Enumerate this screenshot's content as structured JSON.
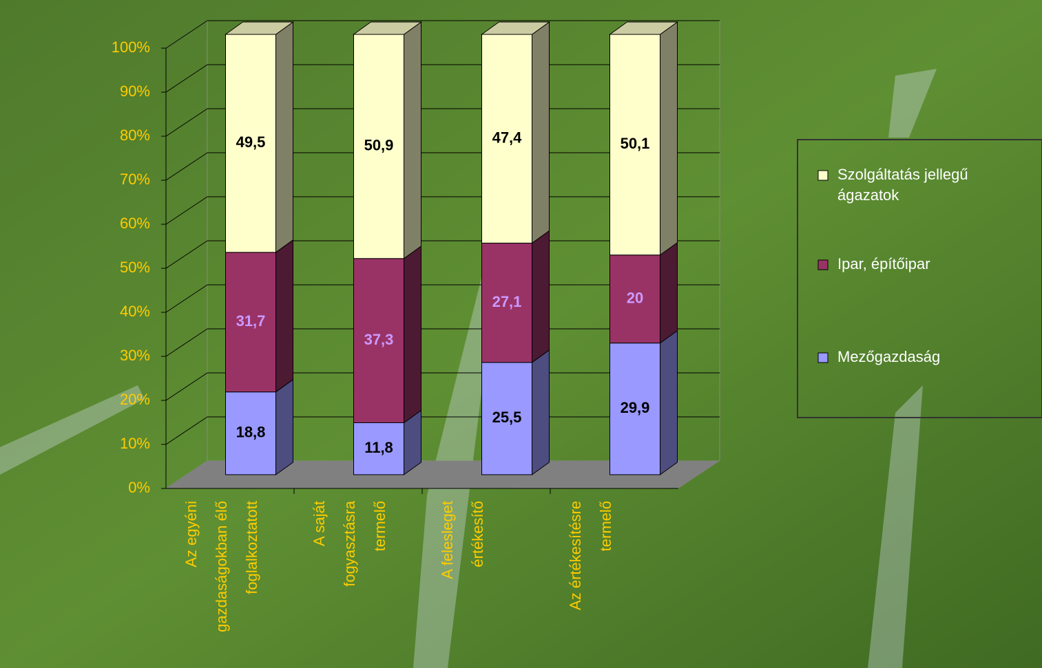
{
  "chart_data": {
    "type": "bar3d-stacked",
    "categories": [
      "Az egyéni gazdaságokban élő foglalkoztatott",
      "A saját fogyasztásra termelő",
      "A felesleget értékesítő",
      "Az értékesítésre termelő"
    ],
    "series": [
      {
        "name": "Mezőgazdaság",
        "color": "#9999ff",
        "label_color": "#000000",
        "values": [
          18.8,
          11.8,
          25.5,
          29.9
        ],
        "value_labels": [
          "18,8",
          "11,8",
          "25,5",
          "29,9"
        ]
      },
      {
        "name": "Ipar, építőipar",
        "color": "#993366",
        "label_color": "#cc99ff",
        "values": [
          31.7,
          37.3,
          27.1,
          20
        ],
        "value_labels": [
          "31,7",
          "37,3",
          "27,1",
          "20"
        ]
      },
      {
        "name": "Szolgáltatás jellegű ágazatok",
        "color": "#ffffcc",
        "label_color": "#000000",
        "values": [
          49.5,
          50.9,
          47.4,
          50.1
        ],
        "value_labels": [
          "49,5",
          "50,9",
          "47,4",
          "50,1"
        ]
      }
    ],
    "ylim": [
      0,
      100
    ],
    "yticks": [
      {
        "value": 0,
        "label": "0%"
      },
      {
        "value": 10,
        "label": "10%"
      },
      {
        "value": 20,
        "label": "20%"
      },
      {
        "value": 30,
        "label": "30%"
      },
      {
        "value": 40,
        "label": "40%"
      },
      {
        "value": 50,
        "label": "50%"
      },
      {
        "value": 60,
        "label": "60%"
      },
      {
        "value": 70,
        "label": "70%"
      },
      {
        "value": 80,
        "label": "80%"
      },
      {
        "value": 90,
        "label": "90%"
      },
      {
        "value": 100,
        "label": "100%"
      }
    ],
    "grid": true,
    "legend": "right"
  }
}
